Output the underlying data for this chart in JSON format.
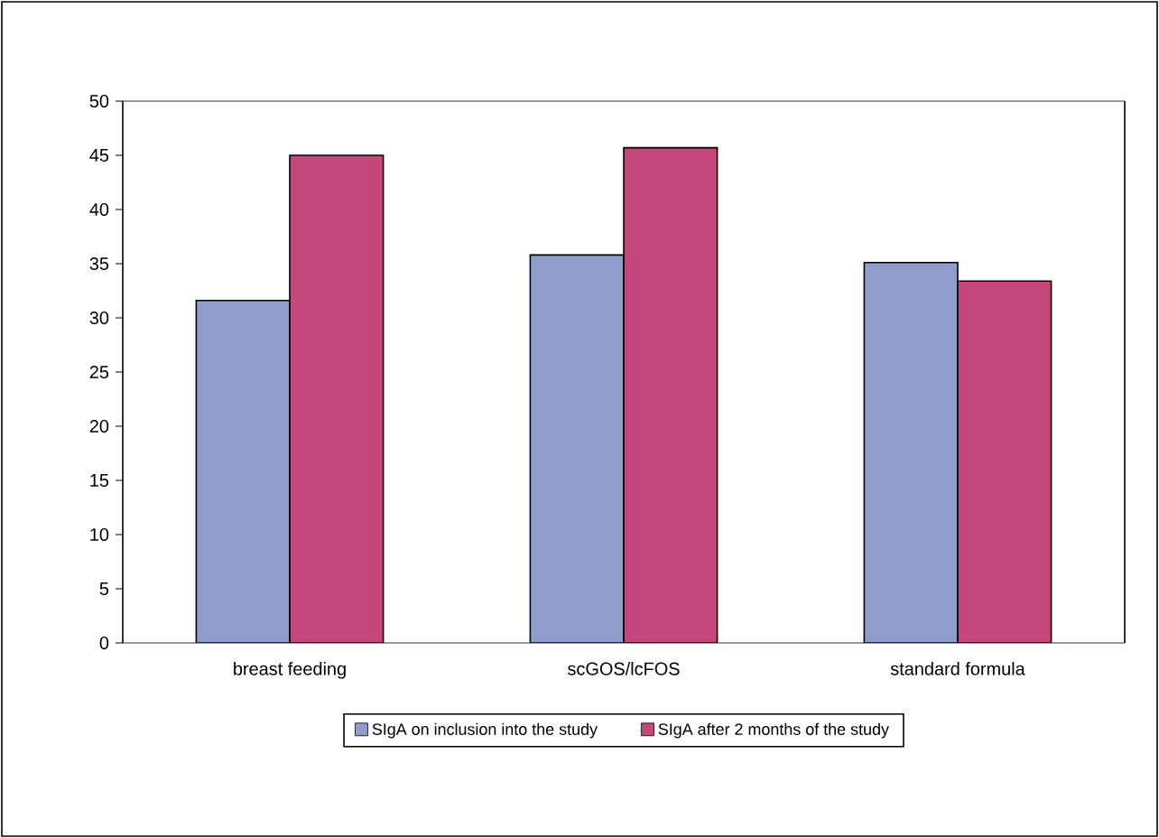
{
  "chart_data": {
    "type": "bar",
    "categories": [
      "breast feeding",
      "scGOS/lcFOS",
      "standard formula"
    ],
    "series": [
      {
        "name": "SIgA on inclusion into the study",
        "color": "#8e9dcc",
        "values": [
          31.6,
          35.8,
          35.1
        ]
      },
      {
        "name": "SIgA after 2 months of the study",
        "color": "#c4467a",
        "values": [
          45.0,
          45.7,
          33.4
        ]
      }
    ],
    "ylim": [
      0,
      50
    ],
    "yticks": [
      0,
      5,
      10,
      15,
      20,
      25,
      30,
      35,
      40,
      45,
      50
    ],
    "grid": false,
    "legend": "bottom"
  }
}
